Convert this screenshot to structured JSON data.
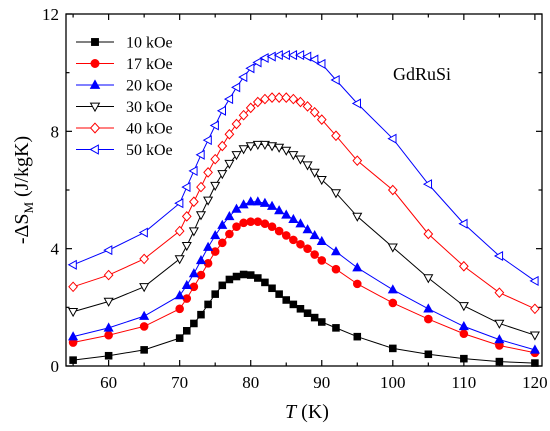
{
  "chart_data": {
    "type": "line",
    "title": "",
    "annotation": "GdRuSi",
    "xlabel": {
      "main": "T",
      "unit": " (K)"
    },
    "ylabel": {
      "prefix": "-ΔS",
      "sub": "M",
      "unit": " (J/kgK)"
    },
    "xlim": [
      54,
      121
    ],
    "ylim": [
      0,
      12
    ],
    "xticks": [
      55,
      60,
      65,
      70,
      75,
      80,
      85,
      90,
      95,
      100,
      105,
      110,
      115,
      120
    ],
    "xtick_labels": [
      "",
      "60",
      "",
      "70",
      "",
      "80",
      "",
      "90",
      "",
      "100",
      "",
      "110",
      "",
      "120"
    ],
    "yticks": [
      0,
      2,
      4,
      6,
      8,
      10,
      12
    ],
    "ytick_labels": [
      "0",
      "",
      "4",
      "",
      "8",
      "",
      "12"
    ],
    "grid": false,
    "legend_position": "top-left",
    "x": [
      55,
      60,
      65,
      70,
      71,
      72,
      73,
      74,
      75,
      76,
      77,
      78,
      79,
      80,
      81,
      82,
      83,
      84,
      85,
      86,
      87,
      88,
      89,
      90,
      92,
      95,
      100,
      105,
      110,
      115,
      120
    ],
    "series": [
      {
        "name": "10 kOe",
        "marker": "square",
        "filled": true,
        "color": "#000000",
        "values": [
          0.2,
          0.35,
          0.55,
          0.95,
          1.2,
          1.45,
          1.75,
          2.1,
          2.45,
          2.75,
          2.95,
          3.05,
          3.12,
          3.1,
          3.0,
          2.85,
          2.65,
          2.45,
          2.25,
          2.1,
          1.95,
          1.8,
          1.65,
          1.5,
          1.3,
          1.0,
          0.6,
          0.4,
          0.25,
          0.15,
          0.1
        ]
      },
      {
        "name": "17 kOe",
        "marker": "circle",
        "filled": true,
        "color": "#ff0000",
        "values": [
          0.8,
          1.05,
          1.35,
          1.95,
          2.3,
          2.7,
          3.1,
          3.5,
          3.9,
          4.2,
          4.5,
          4.75,
          4.88,
          4.92,
          4.92,
          4.85,
          4.75,
          4.6,
          4.45,
          4.3,
          4.15,
          4.0,
          3.8,
          3.6,
          3.3,
          2.8,
          2.15,
          1.6,
          1.1,
          0.7,
          0.45
        ]
      },
      {
        "name": "20 kOe",
        "marker": "triangle-up",
        "filled": true,
        "color": "#0000ff",
        "values": [
          1.0,
          1.3,
          1.7,
          2.4,
          2.75,
          3.15,
          3.6,
          4.05,
          4.45,
          4.8,
          5.1,
          5.35,
          5.5,
          5.6,
          5.6,
          5.55,
          5.45,
          5.3,
          5.15,
          5.0,
          4.85,
          4.65,
          4.45,
          4.25,
          3.9,
          3.35,
          2.6,
          1.95,
          1.35,
          0.9,
          0.55
        ]
      },
      {
        "name": "30 kOe",
        "marker": "triangle-down",
        "filled": false,
        "color": "#000000",
        "values": [
          1.85,
          2.2,
          2.7,
          3.65,
          4.1,
          4.6,
          5.15,
          5.65,
          6.15,
          6.55,
          6.9,
          7.2,
          7.4,
          7.5,
          7.55,
          7.55,
          7.5,
          7.45,
          7.35,
          7.2,
          7.05,
          6.85,
          6.6,
          6.35,
          5.9,
          5.1,
          4.05,
          3.0,
          2.05,
          1.45,
          1.05
        ]
      },
      {
        "name": "40 kOe",
        "marker": "diamond",
        "filled": false,
        "color": "#ff0000",
        "values": [
          2.7,
          3.1,
          3.65,
          4.6,
          5.1,
          5.6,
          6.1,
          6.6,
          7.05,
          7.5,
          7.9,
          8.25,
          8.55,
          8.8,
          9.0,
          9.1,
          9.15,
          9.15,
          9.15,
          9.1,
          9.0,
          8.85,
          8.65,
          8.4,
          7.85,
          7.0,
          6.0,
          4.5,
          3.4,
          2.5,
          1.95
        ]
      },
      {
        "name": "50 kOe",
        "marker": "triangle-left",
        "filled": false,
        "color": "#0000ff",
        "values": [
          3.45,
          3.95,
          4.55,
          5.55,
          6.1,
          6.65,
          7.2,
          7.7,
          8.2,
          8.7,
          9.1,
          9.5,
          9.85,
          10.15,
          10.35,
          10.5,
          10.55,
          10.6,
          10.6,
          10.6,
          10.6,
          10.55,
          10.45,
          10.3,
          9.75,
          8.95,
          7.75,
          6.2,
          4.85,
          3.75,
          2.9
        ]
      }
    ]
  }
}
